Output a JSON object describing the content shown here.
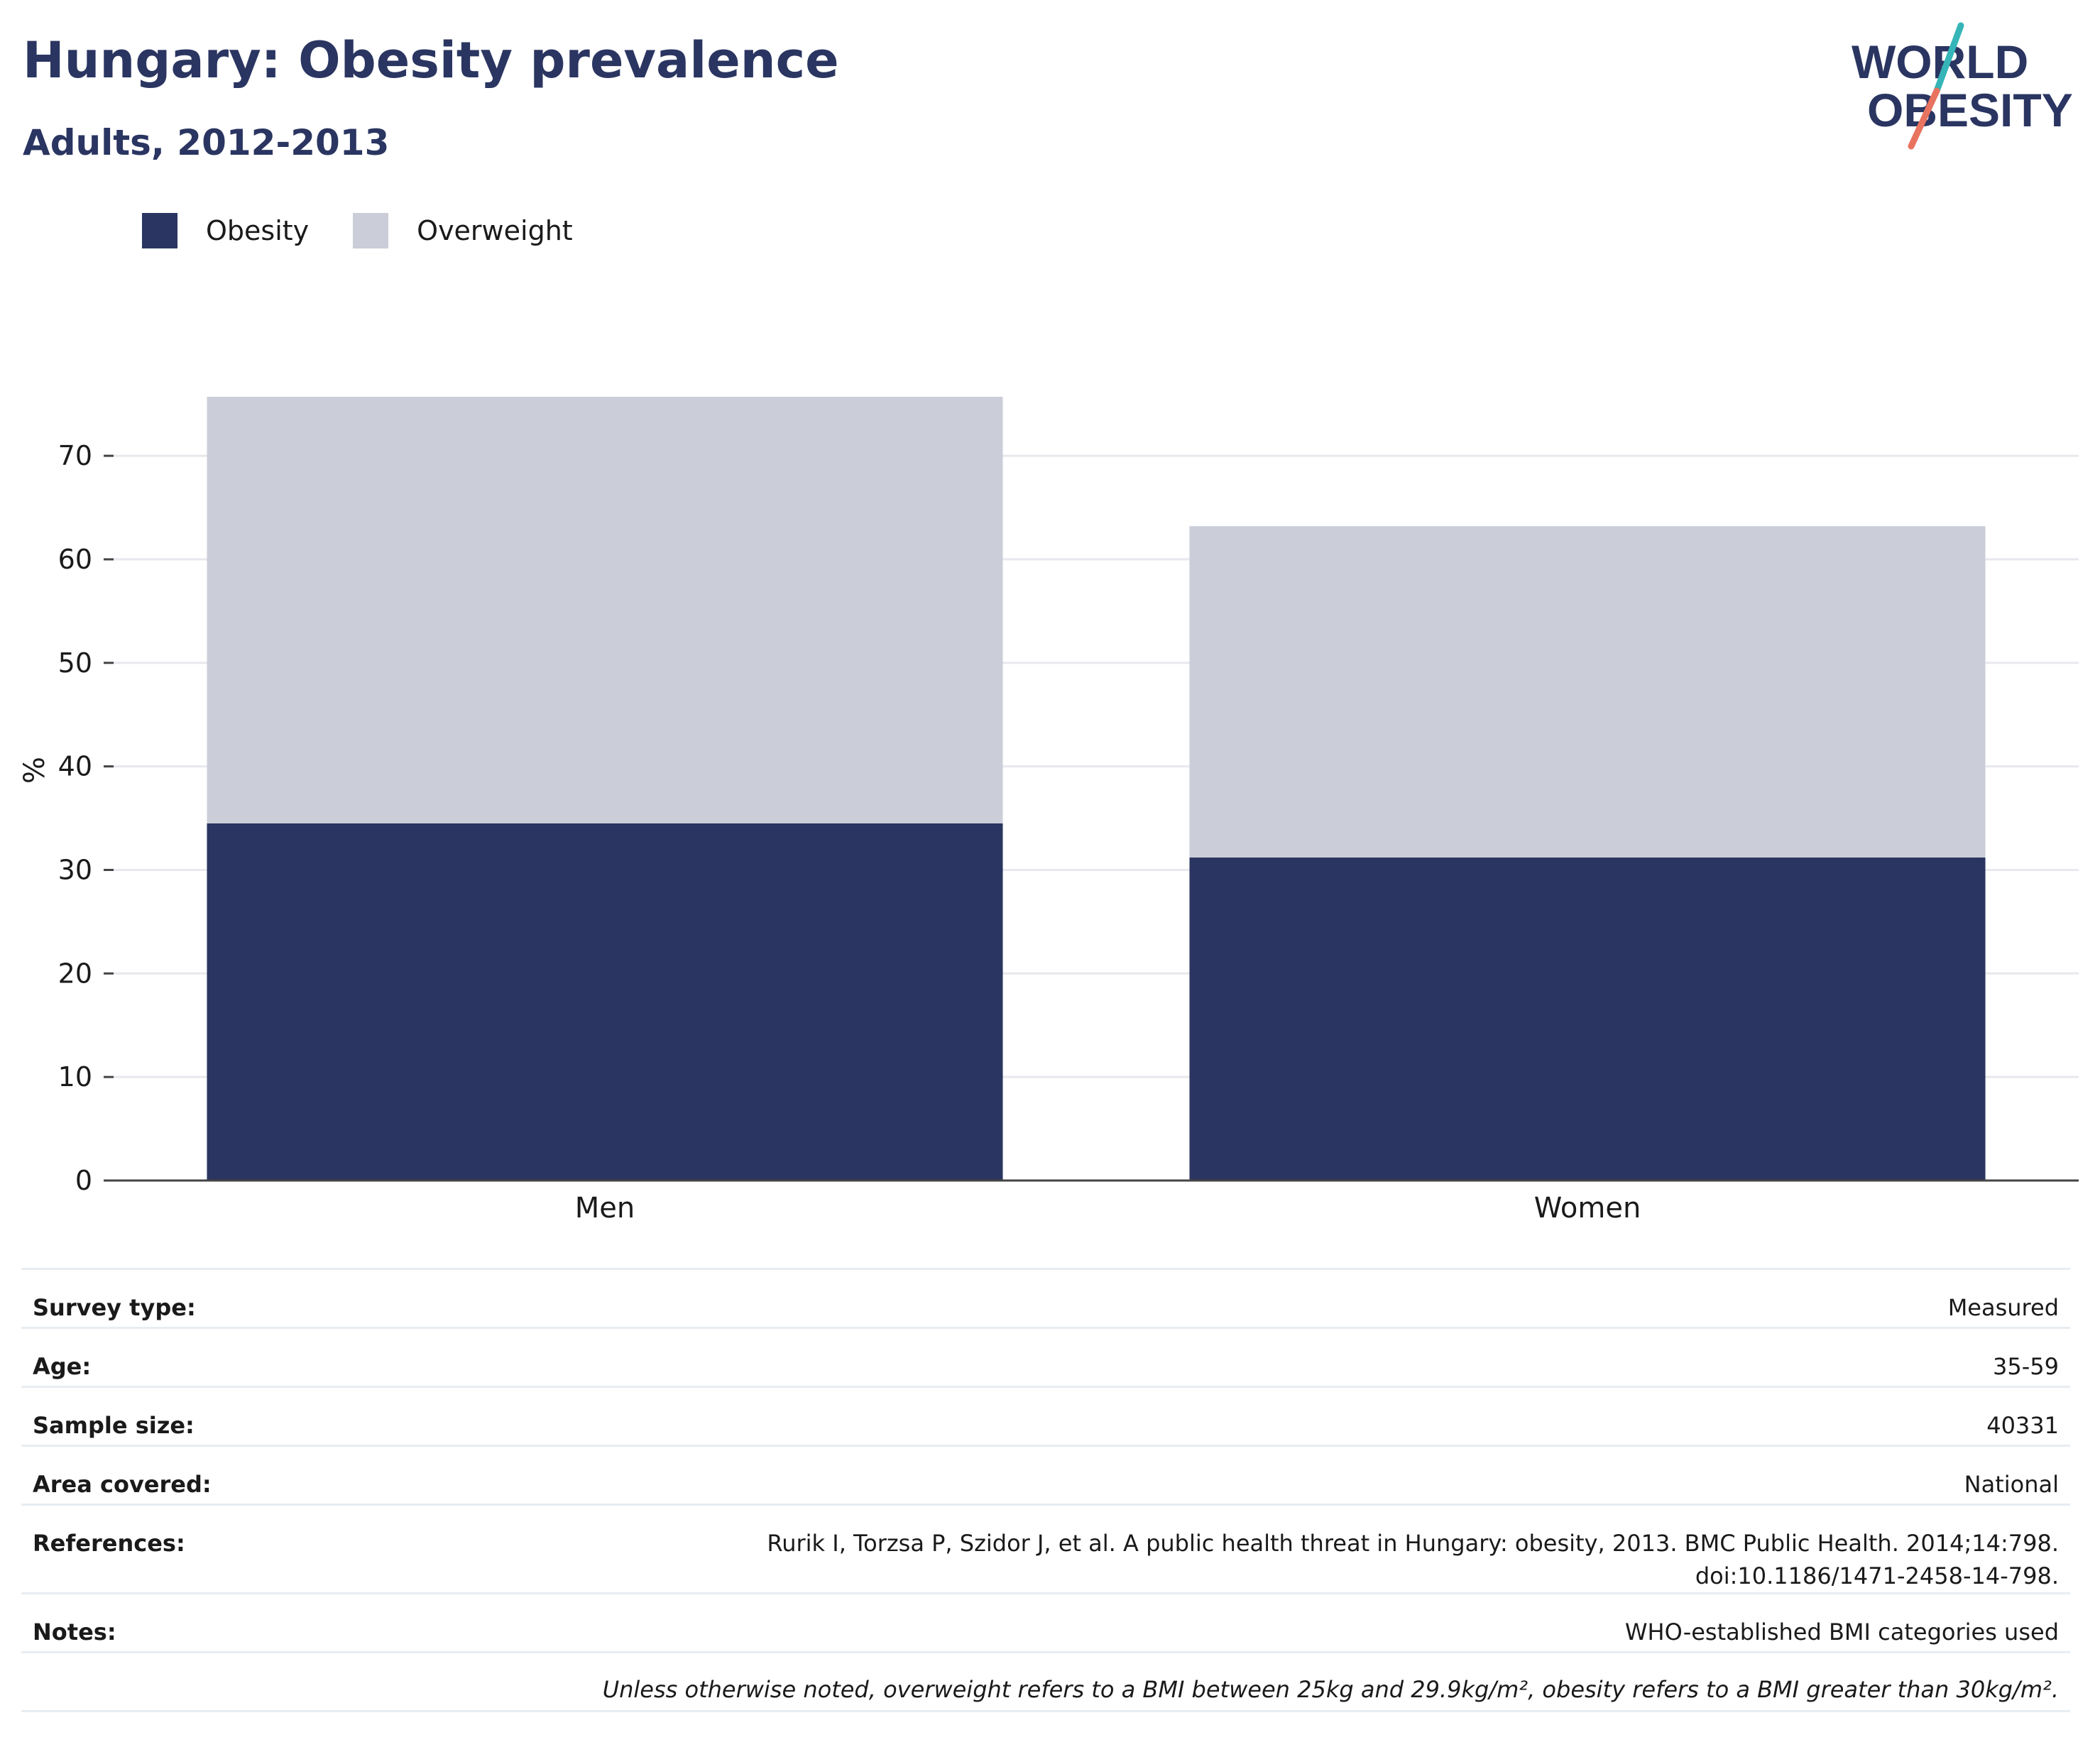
{
  "header": {
    "title": "Hungary: Obesity prevalence",
    "subtitle": "Adults, 2012-2013"
  },
  "logo": {
    "line1": "WORLD",
    "line2": "OBESITY",
    "colors": {
      "text": "#2a3561",
      "slash_top": "#36b5b8",
      "slash_bottom": "#e8735f"
    }
  },
  "colors": {
    "obesity": "#2a3561",
    "overweight": "#cbcdd8",
    "grid": "#e8e8ee",
    "axis": "#444444"
  },
  "chart_data": {
    "type": "bar",
    "stacked": true,
    "categories": [
      "Men",
      "Women"
    ],
    "series": [
      {
        "name": "Obesity",
        "values": [
          34.5,
          31.2
        ]
      },
      {
        "name": "Overweight",
        "values": [
          41.2,
          32.0
        ]
      }
    ],
    "ylabel": "%",
    "ylim": [
      0,
      77
    ],
    "yticks": [
      0,
      10,
      20,
      30,
      40,
      50,
      60,
      70
    ],
    "grid": true,
    "legend_position": "top-left"
  },
  "meta": {
    "rows": [
      {
        "label": "Survey type:",
        "value": "Measured"
      },
      {
        "label": "Age:",
        "value": "35-59"
      },
      {
        "label": "Sample size:",
        "value": "40331"
      },
      {
        "label": "Area covered:",
        "value": "National"
      },
      {
        "label": "References:",
        "value": "Rurik I, Torzsa P, Szidor J, et al. A public health threat in Hungary: obesity, 2013. BMC Public Health. 2014;14:798. doi:10.1186/1471-2458-14-798."
      },
      {
        "label": "Notes:",
        "value": "WHO-established BMI categories used"
      }
    ],
    "footnote": "Unless otherwise noted, overweight refers to a BMI between 25kg and 29.9kg/m², obesity refers to a BMI greater than 30kg/m²."
  }
}
